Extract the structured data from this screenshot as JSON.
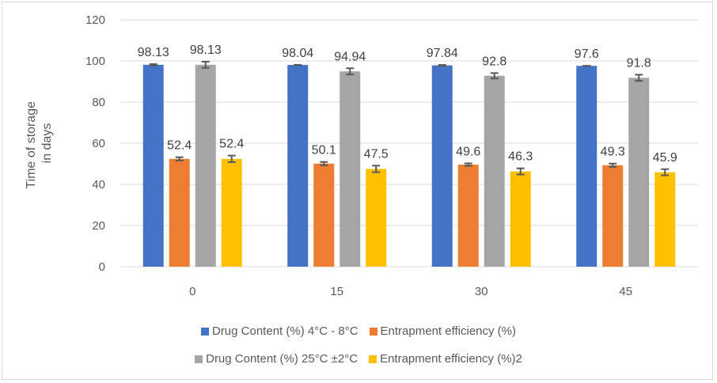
{
  "chart_data": {
    "type": "bar",
    "title": "",
    "xlabel": "",
    "ylabel": "Time of storage in days",
    "ylabel_lines": [
      "Time of storage",
      "in days"
    ],
    "categories": [
      "0",
      "15",
      "30",
      "45"
    ],
    "ylim": [
      0,
      120
    ],
    "yticks": [
      0,
      20,
      40,
      60,
      80,
      100,
      120
    ],
    "grid": true,
    "legend_position": "bottom",
    "series": [
      {
        "name": "Drug Content (%) 4°C - 8°C",
        "color": "#4472C4",
        "values": [
          98.13,
          98.04,
          97.84,
          97.6
        ],
        "errors": [
          0.3,
          0.0,
          0.2,
          0.0
        ]
      },
      {
        "name": "Entrapment efficiency (%)",
        "color": "#ED7D31",
        "values": [
          52.4,
          50.1,
          49.6,
          49.3
        ],
        "errors": [
          0.8,
          0.8,
          0.6,
          0.8
        ]
      },
      {
        "name": "Drug Content (%) 25°C ±2°C",
        "color": "#A5A5A5",
        "values": [
          98.13,
          94.94,
          92.8,
          91.8
        ],
        "errors": [
          1.5,
          1.5,
          1.3,
          1.5
        ]
      },
      {
        "name": "Entrapment efficiency (%)2",
        "color": "#FFC000",
        "values": [
          52.4,
          47.5,
          46.3,
          45.9
        ],
        "errors": [
          1.6,
          1.6,
          1.5,
          1.5
        ]
      }
    ],
    "data_labels": [
      [
        "98.13",
        "98.04",
        "97.84",
        "97.6"
      ],
      [
        "52.4",
        "50.1",
        "49.6",
        "49.3"
      ],
      [
        "98.13",
        "94.94",
        "92.8",
        "91.8"
      ],
      [
        "52.4",
        "47.5",
        "46.3",
        "45.9"
      ]
    ]
  }
}
